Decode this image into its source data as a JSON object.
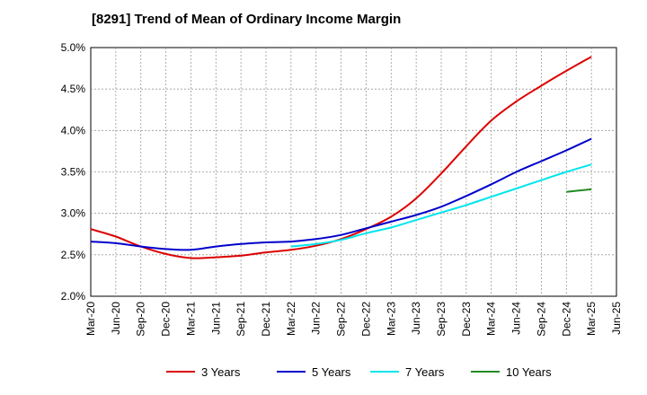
{
  "chart_data": {
    "type": "line",
    "title": "[8291]  Trend of Mean of Ordinary Income Margin",
    "xlabel": "",
    "ylabel": "",
    "x": [
      "Mar-20",
      "Jun-20",
      "Sep-20",
      "Dec-20",
      "Mar-21",
      "Jun-21",
      "Sep-21",
      "Dec-21",
      "Mar-22",
      "Jun-22",
      "Sep-22",
      "Dec-22",
      "Mar-23",
      "Jun-23",
      "Sep-23",
      "Dec-23",
      "Mar-24",
      "Jun-24",
      "Sep-24",
      "Dec-24",
      "Mar-25",
      "Jun-25"
    ],
    "y_ticks": [
      "2.0%",
      "2.5%",
      "3.0%",
      "3.5%",
      "4.0%",
      "4.5%",
      "5.0%"
    ],
    "ylim": [
      2.0,
      5.0
    ],
    "grid": true,
    "legend_position": "bottom",
    "series": [
      {
        "name": "3 Years",
        "color": "#dd0000",
        "values": [
          2.81,
          2.72,
          2.6,
          2.51,
          2.46,
          2.47,
          2.49,
          2.53,
          2.56,
          2.61,
          2.69,
          2.81,
          2.96,
          3.18,
          3.48,
          3.81,
          4.12,
          4.35,
          4.54,
          4.72,
          4.89,
          null
        ]
      },
      {
        "name": "5 Years",
        "color": "#0000cc",
        "values": [
          2.66,
          2.64,
          2.6,
          2.57,
          2.56,
          2.6,
          2.63,
          2.65,
          2.66,
          2.69,
          2.74,
          2.82,
          2.9,
          2.98,
          3.08,
          3.21,
          3.35,
          3.5,
          3.63,
          3.76,
          3.9,
          null
        ]
      },
      {
        "name": "7 Years",
        "color": "#00e5ee",
        "values": [
          null,
          null,
          null,
          null,
          null,
          null,
          null,
          null,
          2.6,
          2.63,
          2.68,
          2.76,
          2.83,
          2.92,
          3.01,
          3.1,
          3.2,
          3.3,
          3.4,
          3.5,
          3.59,
          null
        ]
      },
      {
        "name": "10 Years",
        "color": "#228b22",
        "values": [
          null,
          null,
          null,
          null,
          null,
          null,
          null,
          null,
          null,
          null,
          null,
          null,
          null,
          null,
          null,
          null,
          null,
          null,
          null,
          3.26,
          3.29,
          null
        ]
      }
    ]
  }
}
